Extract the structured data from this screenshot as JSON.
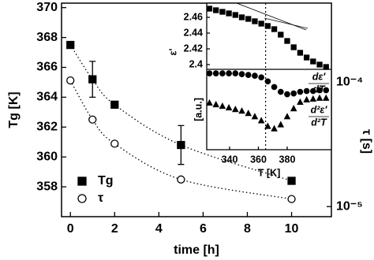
{
  "chart_data": [
    {
      "type": "scatter",
      "x_label": "time [h]",
      "y_label": "Tg [K]",
      "y2_label": "τ [s]",
      "x": [
        0,
        1,
        2,
        5,
        10
      ],
      "xlim": [
        -0.4,
        11.8
      ],
      "xticks": [
        0,
        2,
        4,
        6,
        8,
        10
      ],
      "ylim": [
        356,
        370.3
      ],
      "yticks": [
        358,
        360,
        362,
        364,
        366,
        368,
        370
      ],
      "y2lim": [
        8.3e-06,
        0.00043
      ],
      "y2log": true,
      "y2ticks": [
        {
          "value": 1e-05,
          "label": "10⁻⁵"
        },
        {
          "value": 0.0001,
          "label": "10⁻⁴"
        }
      ],
      "legend": "lower left",
      "series": [
        {
          "name": "Tg",
          "marker": "square",
          "filled": true,
          "color": "#000000",
          "fit": true,
          "values": [
            367.5,
            365.2,
            363.5,
            360.8,
            358.4
          ],
          "errors": [
            null,
            1.2,
            null,
            1.3,
            null
          ]
        },
        {
          "name": "τ",
          "marker": "circle",
          "filled": false,
          "color": "#000000",
          "fit": true,
          "axis": "y2",
          "values": [
            0.000103,
            5e-05,
            3.2e-05,
            1.65e-05,
            1.15e-05
          ]
        }
      ]
    },
    {
      "type": "scatter",
      "y_label": "ε'",
      "x": [
        326,
        330.5,
        335,
        339.5,
        344,
        348.5,
        353,
        357.5,
        362,
        366.5,
        371,
        375.5,
        380,
        384.5,
        389,
        393.5,
        398,
        402.5,
        407
      ],
      "xlim": [
        324.1,
        410.7
      ],
      "ylim": [
        2.394,
        2.478
      ],
      "yticks": [
        2.4,
        2.42,
        2.44,
        2.46
      ],
      "vline": 365,
      "series": [
        {
          "marker": "square",
          "filled": true,
          "color": "#000000",
          "values": [
            2.471,
            2.469,
            2.467,
            2.465,
            2.463,
            2.46,
            2.458,
            2.455,
            2.452,
            2.449,
            2.445,
            2.438,
            2.43,
            2.422,
            2.415,
            2.409,
            2.404,
            2.4,
            2.397
          ]
        }
      ]
    },
    {
      "type": "scatter",
      "x_label": "T [K]",
      "y_label": "[a.u.]",
      "x": [
        326,
        330.5,
        335,
        339.5,
        344,
        348.5,
        353,
        357.5,
        362,
        366.5,
        371,
        375.5,
        380,
        384.5,
        389,
        393.5,
        398,
        402.5,
        407
      ],
      "xlim": [
        324.1,
        410.7
      ],
      "xticks": [
        340,
        360,
        380
      ],
      "ylim": [
        0,
        10
      ],
      "vline": 365,
      "annotations": [
        {
          "num": "dε′",
          "den": "dT"
        },
        {
          "num": "d²ε′",
          "den": "d²T"
        }
      ],
      "series": [
        {
          "marker": "circle",
          "filled": true,
          "color": "#000000",
          "values": [
            9.5,
            9.5,
            9.5,
            9.5,
            9.5,
            9.4,
            9.3,
            9.2,
            9.0,
            8.5,
            7.8,
            7.2,
            6.9,
            7.0,
            7.2,
            7.3,
            7.3,
            7.4,
            7.4
          ]
        },
        {
          "marker": "triangle",
          "filled": true,
          "color": "#000000",
          "values": [
            5.8,
            5.6,
            5.4,
            5.2,
            5.0,
            4.8,
            4.5,
            4.1,
            3.6,
            2.9,
            2.6,
            3.1,
            4.1,
            5.1,
            5.9,
            6.2,
            6.3,
            6.4,
            6.4
          ]
        }
      ]
    }
  ]
}
